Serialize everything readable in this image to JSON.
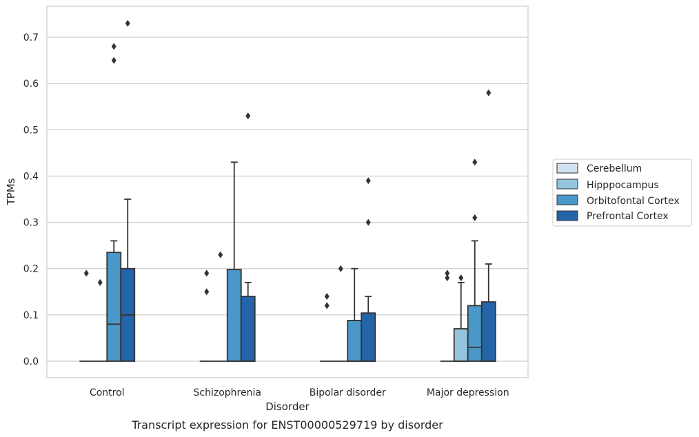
{
  "chart_data": {
    "type": "box",
    "title": "",
    "caption": "Transcript expression for ENST00000529719 by disorder",
    "xlabel": "Disorder",
    "ylabel": "TPMs",
    "ylim": [
      -0.035,
      0.77
    ],
    "yticks": [
      "0.0",
      "0.1",
      "0.2",
      "0.3",
      "0.4",
      "0.5",
      "0.6",
      "0.7"
    ],
    "grid": "horizontal",
    "legend_position": "right",
    "categories": [
      "Control",
      "Schizophrenia",
      "Bipolar disorder",
      "Major depression"
    ],
    "series": [
      {
        "name": "Cerebellum",
        "color": "#d0e1f2"
      },
      {
        "name": "Hipppocampus",
        "color": "#94c4df"
      },
      {
        "name": "Orbitofontal Cortex",
        "color": "#4a98c9"
      },
      {
        "name": "Prefrontal Cortex",
        "color": "#2464a8"
      }
    ],
    "boxes": [
      [
        {
          "q1": 0,
          "median": 0,
          "q3": 0,
          "whisker_low": 0,
          "whisker_high": 0,
          "outliers": [
            0.19
          ]
        },
        {
          "q1": 0,
          "median": 0,
          "q3": 0,
          "whisker_low": 0,
          "whisker_high": 0,
          "outliers": [
            0.17
          ]
        },
        {
          "q1": 0,
          "median": 0.08,
          "q3": 0.235,
          "whisker_low": 0,
          "whisker_high": 0.26,
          "outliers": [
            0.65,
            0.68
          ]
        },
        {
          "q1": 0,
          "median": 0.1,
          "q3": 0.2,
          "whisker_low": 0,
          "whisker_high": 0.35,
          "outliers": [
            0.73
          ]
        }
      ],
      [
        {
          "q1": 0,
          "median": 0,
          "q3": 0,
          "whisker_low": 0,
          "whisker_high": 0,
          "outliers": [
            0.15,
            0.19
          ]
        },
        {
          "q1": 0,
          "median": 0,
          "q3": 0,
          "whisker_low": 0,
          "whisker_high": 0,
          "outliers": [
            0.23
          ]
        },
        {
          "q1": 0,
          "median": 0,
          "q3": 0.198,
          "whisker_low": 0,
          "whisker_high": 0.43,
          "outliers": []
        },
        {
          "q1": 0,
          "median": 0,
          "q3": 0.14,
          "whisker_low": 0,
          "whisker_high": 0.17,
          "outliers": [
            0.53
          ]
        }
      ],
      [
        {
          "q1": 0,
          "median": 0,
          "q3": 0,
          "whisker_low": 0,
          "whisker_high": 0,
          "outliers": [
            0.12,
            0.14
          ]
        },
        {
          "q1": 0,
          "median": 0,
          "q3": 0,
          "whisker_low": 0,
          "whisker_high": 0,
          "outliers": [
            0.2
          ]
        },
        {
          "q1": 0,
          "median": 0,
          "q3": 0.088,
          "whisker_low": 0,
          "whisker_high": 0.2,
          "outliers": []
        },
        {
          "q1": 0,
          "median": 0,
          "q3": 0.104,
          "whisker_low": 0,
          "whisker_high": 0.14,
          "outliers": [
            0.3,
            0.39
          ]
        }
      ],
      [
        {
          "q1": 0,
          "median": 0,
          "q3": 0,
          "whisker_low": 0,
          "whisker_high": 0,
          "outliers": [
            0.18,
            0.19
          ]
        },
        {
          "q1": 0,
          "median": 0,
          "q3": 0.07,
          "whisker_low": 0,
          "whisker_high": 0.17,
          "outliers": [
            0.18
          ]
        },
        {
          "q1": 0,
          "median": 0.03,
          "q3": 0.12,
          "whisker_low": 0,
          "whisker_high": 0.26,
          "outliers": [
            0.31,
            0.43
          ]
        },
        {
          "q1": 0,
          "median": 0,
          "q3": 0.128,
          "whisker_low": 0,
          "whisker_high": 0.21,
          "outliers": [
            0.58
          ]
        }
      ]
    ]
  }
}
